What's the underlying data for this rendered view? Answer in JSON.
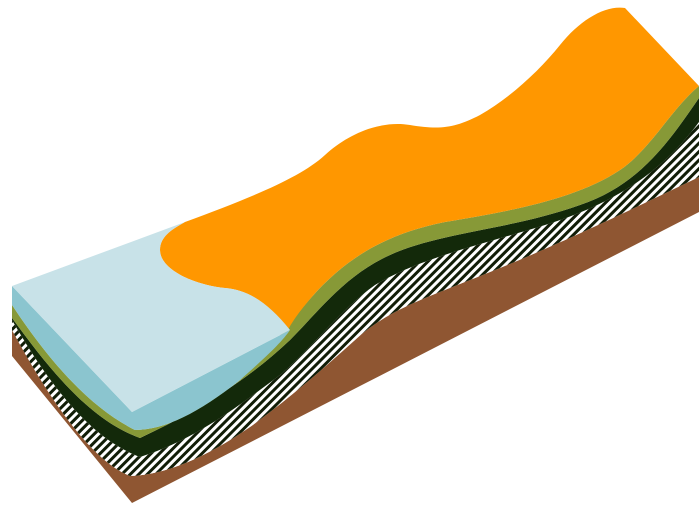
{
  "colors": {
    "background": "#ffffff",
    "base_layer": "#8f5632",
    "hatched_layer_dark": "#111d07",
    "hatched_layer_light": "#ffffff",
    "dark_layer": "#13290a",
    "olive_layer": "#879937",
    "orange_layer": "#ff9700",
    "water_surface": "#c8e2e8",
    "water_front": "#8bc5cf",
    "water_edge_shadow": "#86bbc6"
  }
}
